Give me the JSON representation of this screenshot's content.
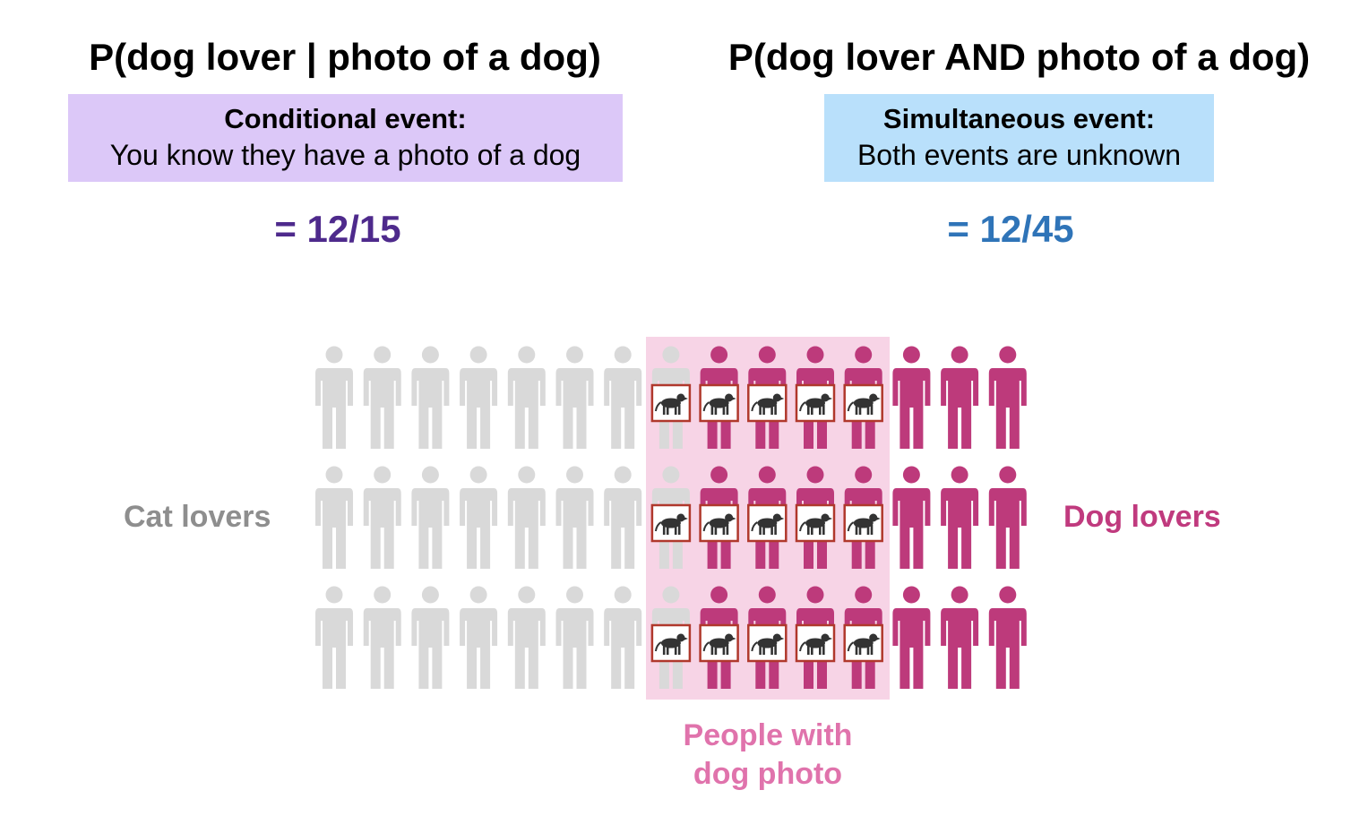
{
  "left_panel": {
    "title": "P(dog lover | photo of a dog)",
    "event_heading": "Conditional event:",
    "event_description": "You know they have a photo of a dog",
    "result": "= 12/15",
    "box_color": "#dcc8f8",
    "result_color": "#4e2a8c"
  },
  "right_panel": {
    "title": "P(dog lover AND photo of a dog)",
    "event_heading": "Simultaneous event:",
    "event_description": "Both events are unknown",
    "result": "= 12/45",
    "box_color": "#b9e0fb",
    "result_color": "#2f74b8"
  },
  "labels": {
    "cat_lovers": "Cat lovers",
    "dog_lovers": "Dog lovers",
    "photo_line1": "People with",
    "photo_line2": "dog photo"
  },
  "population": {
    "rows": 3,
    "people_per_row": 15,
    "cat_lovers_per_row": 8,
    "dog_lovers_per_row": 7,
    "dog_photo_holders_per_row": 5,
    "cat_lover_color": "#d9d9d9",
    "dog_lover_color": "#bd3a7b",
    "highlight_color": "#f7d4e6",
    "photo_frame_color": "#b0382c",
    "dog_icon": "dog-silhouette-icon"
  }
}
